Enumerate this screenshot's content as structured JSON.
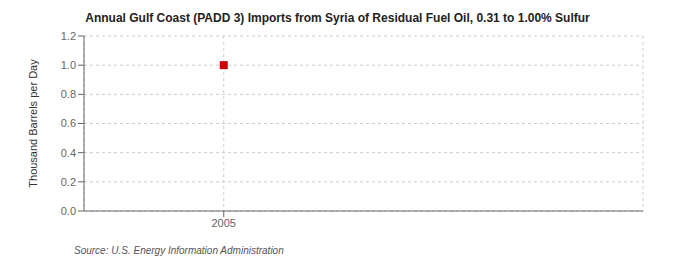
{
  "chart_data": {
    "type": "scatter",
    "title": "Annual Gulf Coast (PADD 3) Imports from Syria of Residual Fuel Oil, 0.31 to 1.00% Sulfur",
    "y_label": "Thousand Barrels per Day",
    "annotations": [
      "Source: U.S. Energy Information Administration"
    ],
    "x": [
      2005
    ],
    "values": [
      1.0
    ],
    "color": "#cc0000",
    "marker": "square",
    "xlim": [
      2004.5,
      2006.5
    ],
    "xticks": [
      2005
    ],
    "ylim": [
      0.0,
      1.2
    ],
    "yticks": [
      {
        "value": 0.0,
        "label": "0.0"
      },
      0.2,
      0.4,
      0.6,
      0.8,
      {
        "value": 1.0,
        "label": "1.0"
      },
      1.2
    ],
    "grid": true
  }
}
